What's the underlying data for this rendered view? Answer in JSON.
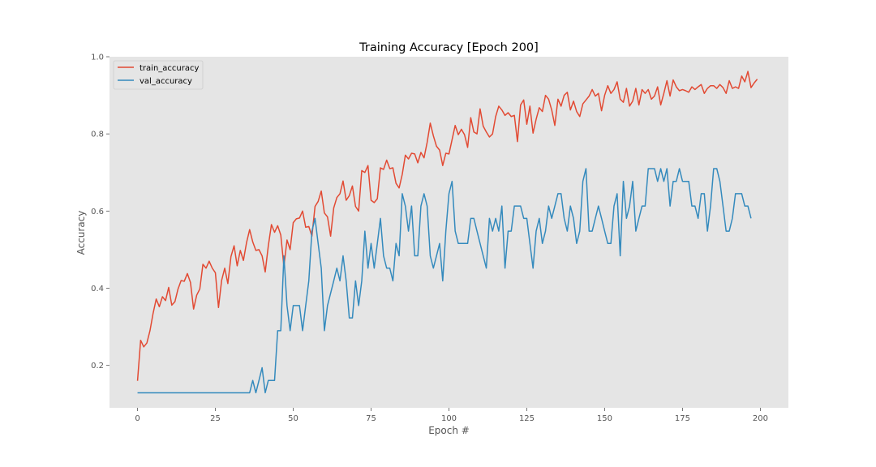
{
  "chart_data": {
    "type": "line",
    "title": "Training Accuracy [Epoch 200]",
    "xlabel": "Epoch #",
    "ylabel": "Accuracy",
    "xlim": [
      -9,
      209
    ],
    "ylim": [
      0.09,
      1.0
    ],
    "xticks": [
      0,
      25,
      50,
      75,
      100,
      125,
      150,
      175,
      200
    ],
    "yticks": [
      0.2,
      0.4,
      0.6,
      0.8,
      1.0
    ],
    "ytick_labels": [
      "0.2",
      "0.4",
      "0.6",
      "0.8",
      "1.0"
    ],
    "grid": false,
    "background": "#e5e5e5",
    "legend_position": "top-left",
    "series": [
      {
        "name": "train_accuracy",
        "color": "#e24a33",
        "x_start": 0,
        "values": [
          0.16,
          0.265,
          0.248,
          0.258,
          0.29,
          0.335,
          0.372,
          0.352,
          0.378,
          0.368,
          0.402,
          0.356,
          0.365,
          0.398,
          0.42,
          0.418,
          0.438,
          0.415,
          0.346,
          0.382,
          0.398,
          0.462,
          0.452,
          0.47,
          0.452,
          0.44,
          0.35,
          0.42,
          0.452,
          0.412,
          0.482,
          0.51,
          0.458,
          0.498,
          0.472,
          0.518,
          0.552,
          0.52,
          0.498,
          0.5,
          0.484,
          0.442,
          0.51,
          0.565,
          0.545,
          0.562,
          0.538,
          0.456,
          0.525,
          0.5,
          0.57,
          0.58,
          0.582,
          0.6,
          0.558,
          0.56,
          0.535,
          0.612,
          0.625,
          0.652,
          0.595,
          0.585,
          0.535,
          0.608,
          0.635,
          0.645,
          0.678,
          0.628,
          0.64,
          0.665,
          0.612,
          0.6,
          0.705,
          0.7,
          0.718,
          0.628,
          0.622,
          0.632,
          0.712,
          0.708,
          0.732,
          0.71,
          0.712,
          0.672,
          0.66,
          0.695,
          0.745,
          0.735,
          0.75,
          0.748,
          0.725,
          0.752,
          0.738,
          0.778,
          0.828,
          0.795,
          0.768,
          0.758,
          0.718,
          0.75,
          0.748,
          0.785,
          0.822,
          0.798,
          0.812,
          0.798,
          0.765,
          0.842,
          0.805,
          0.8,
          0.865,
          0.82,
          0.805,
          0.792,
          0.8,
          0.845,
          0.872,
          0.862,
          0.848,
          0.855,
          0.845,
          0.848,
          0.78,
          0.875,
          0.888,
          0.825,
          0.872,
          0.802,
          0.838,
          0.868,
          0.858,
          0.9,
          0.89,
          0.862,
          0.822,
          0.89,
          0.872,
          0.9,
          0.908,
          0.862,
          0.885,
          0.858,
          0.845,
          0.878,
          0.888,
          0.898,
          0.915,
          0.898,
          0.905,
          0.86,
          0.9,
          0.925,
          0.905,
          0.915,
          0.935,
          0.89,
          0.882,
          0.918,
          0.872,
          0.885,
          0.918,
          0.875,
          0.915,
          0.905,
          0.915,
          0.89,
          0.898,
          0.922,
          0.875,
          0.905,
          0.938,
          0.898,
          0.94,
          0.922,
          0.912,
          0.915,
          0.912,
          0.908,
          0.922,
          0.915,
          0.922,
          0.928,
          0.905,
          0.918,
          0.925,
          0.925,
          0.918,
          0.928,
          0.92,
          0.905,
          0.938,
          0.918,
          0.922,
          0.918,
          0.95,
          0.935,
          0.962,
          0.92,
          0.932,
          0.942
        ]
      },
      {
        "name": "val_accuracy",
        "color": "#348abd",
        "x_start": 0,
        "values": [
          0.129,
          0.129,
          0.129,
          0.129,
          0.129,
          0.129,
          0.129,
          0.129,
          0.129,
          0.129,
          0.129,
          0.129,
          0.129,
          0.129,
          0.129,
          0.129,
          0.129,
          0.129,
          0.129,
          0.129,
          0.129,
          0.129,
          0.129,
          0.129,
          0.129,
          0.129,
          0.129,
          0.129,
          0.129,
          0.129,
          0.129,
          0.129,
          0.129,
          0.129,
          0.129,
          0.129,
          0.129,
          0.161,
          0.129,
          0.161,
          0.194,
          0.129,
          0.161,
          0.161,
          0.161,
          0.29,
          0.29,
          0.484,
          0.355,
          0.29,
          0.355,
          0.355,
          0.355,
          0.29,
          0.355,
          0.419,
          0.548,
          0.581,
          0.516,
          0.452,
          0.29,
          0.355,
          0.387,
          0.419,
          0.452,
          0.419,
          0.484,
          0.419,
          0.323,
          0.323,
          0.419,
          0.355,
          0.419,
          0.548,
          0.452,
          0.516,
          0.452,
          0.516,
          0.581,
          0.484,
          0.452,
          0.452,
          0.419,
          0.516,
          0.484,
          0.645,
          0.613,
          0.548,
          0.613,
          0.484,
          0.484,
          0.613,
          0.645,
          0.613,
          0.484,
          0.452,
          0.484,
          0.516,
          0.419,
          0.548,
          0.645,
          0.677,
          0.548,
          0.516,
          0.516,
          0.516,
          0.516,
          0.581,
          0.581,
          0.548,
          0.516,
          0.484,
          0.452,
          0.581,
          0.548,
          0.581,
          0.548,
          0.613,
          0.452,
          0.548,
          0.548,
          0.613,
          0.613,
          0.613,
          0.581,
          0.581,
          0.516,
          0.452,
          0.548,
          0.581,
          0.516,
          0.548,
          0.613,
          0.581,
          0.613,
          0.645,
          0.645,
          0.581,
          0.548,
          0.613,
          0.581,
          0.516,
          0.548,
          0.677,
          0.71,
          0.548,
          0.548,
          0.581,
          0.613,
          0.581,
          0.548,
          0.516,
          0.516,
          0.613,
          0.645,
          0.484,
          0.677,
          0.581,
          0.613,
          0.677,
          0.548,
          0.581,
          0.613,
          0.613,
          0.71,
          0.71,
          0.71,
          0.677,
          0.71,
          0.677,
          0.71,
          0.613,
          0.677,
          0.677,
          0.71,
          0.677,
          0.677,
          0.677,
          0.613,
          0.613,
          0.581,
          0.645,
          0.645,
          0.548,
          0.613,
          0.71,
          0.71,
          0.677,
          0.613,
          0.548,
          0.548,
          0.581,
          0.645,
          0.645,
          0.645,
          0.613,
          0.613,
          0.581
        ]
      }
    ]
  }
}
